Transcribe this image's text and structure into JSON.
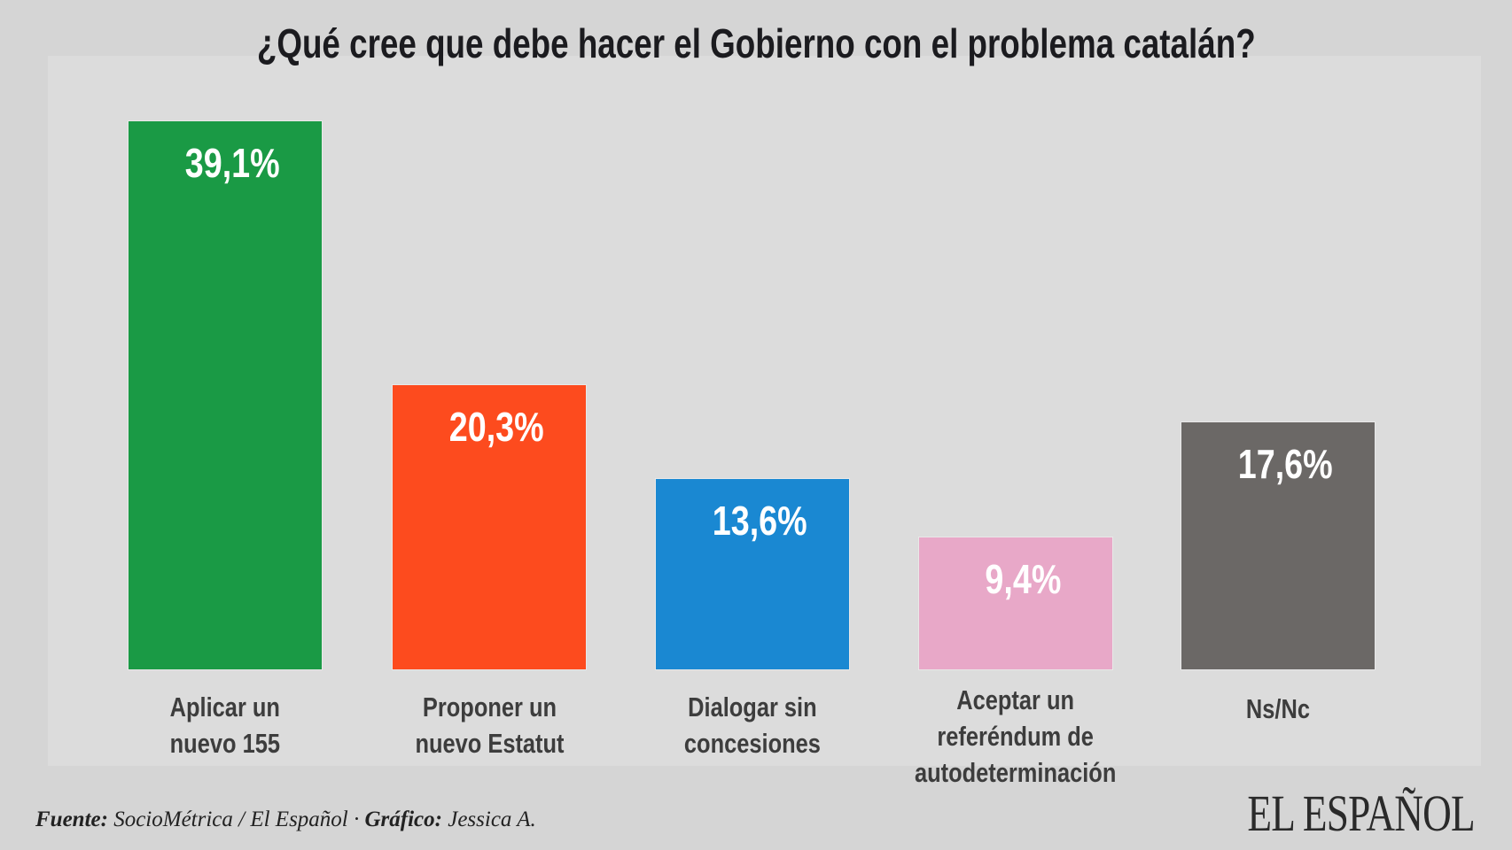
{
  "chart_data": {
    "type": "bar",
    "title": "¿Qué cree que debe hacer el Gobierno con el problema catalán?",
    "categories": [
      "Aplicar un\nnuevo 155",
      "Proponer un\nnuevo Estatut",
      "Dialogar sin\nconcesiones",
      "Aceptar un\nreferéndum de\nautodeterminación",
      "Ns/Nc"
    ],
    "values": [
      39.1,
      20.3,
      13.6,
      9.4,
      17.6
    ],
    "data_labels": [
      "39,1%",
      "20,3%",
      "13,6%",
      "9,4%",
      "17,6%"
    ],
    "colors": [
      "#1a9a45",
      "#fd4b1e",
      "#1a88d2",
      "#e8a8c8",
      "#6b6866"
    ],
    "unit": "%",
    "grid": false,
    "legend": "none"
  },
  "footer": {
    "source_label": "Fuente:",
    "source": "SocioMétrica / El Español ·",
    "graphic_label": "Gráfico:",
    "graphic": "Jessica A."
  },
  "logo": "EL ESPAÑOL"
}
